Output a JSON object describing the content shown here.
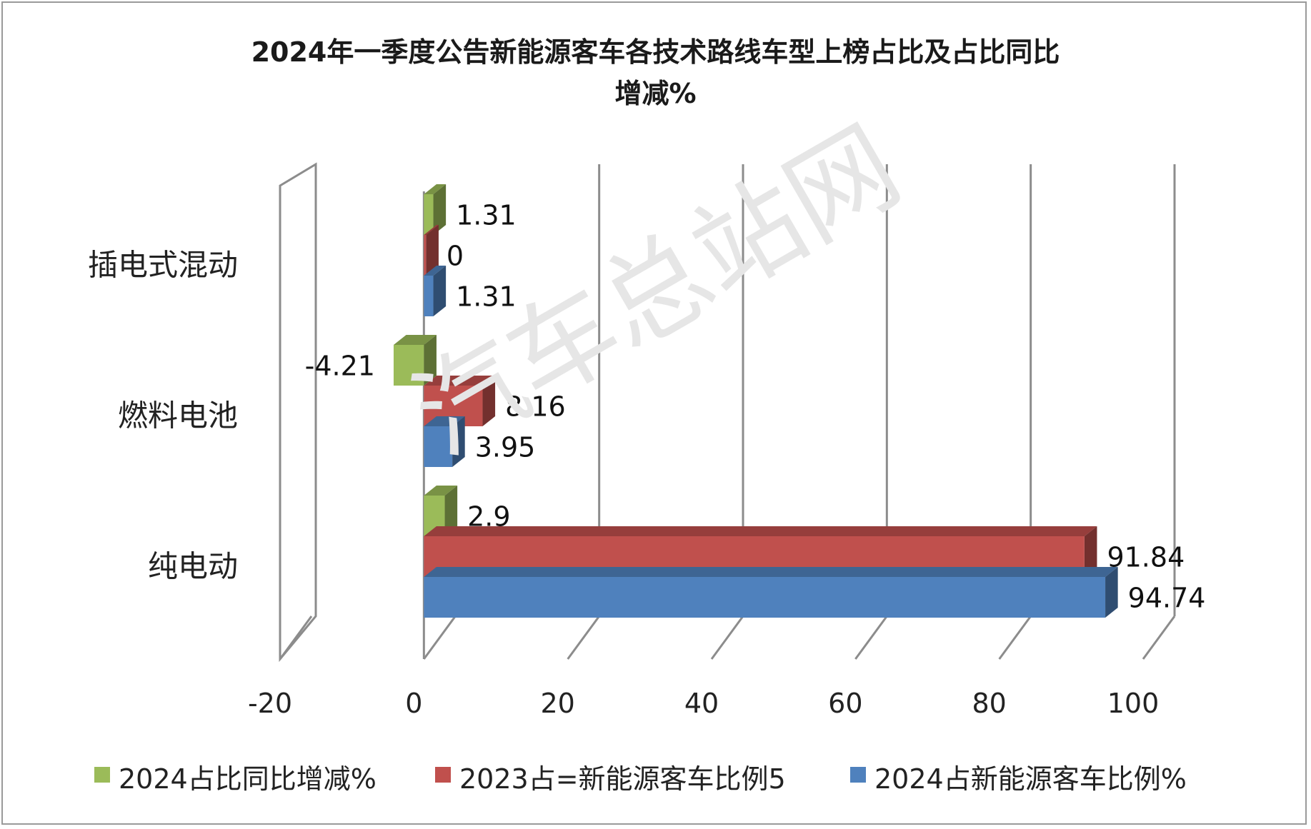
{
  "chart_data": {
    "type": "bar",
    "orientation": "horizontal",
    "title_lines": [
      "2024年一季度公告新能源客车各技术路线车型上榜占比及占比同比",
      "增减%"
    ],
    "categories": [
      "插电式混动",
      "燃料电池",
      "纯电动"
    ],
    "series": [
      {
        "name": "2024占比同比增减%",
        "color": "#9BBB59",
        "values": [
          1.31,
          -4.21,
          2.9
        ]
      },
      {
        "name": "2023占=新能源客车比例5",
        "color": "#C0504D",
        "values": [
          0,
          8.16,
          91.84
        ]
      },
      {
        "name": "2024占新能源客车比例%",
        "color": "#4F81BD",
        "values": [
          1.31,
          3.95,
          94.74
        ]
      }
    ],
    "data_labels": [
      [
        "1.31",
        "0",
        "1.31"
      ],
      [
        "-4.21",
        "8.16",
        "3.95"
      ],
      [
        "2.9",
        "91.84",
        "94.74"
      ]
    ],
    "xlim": [
      -20,
      100
    ],
    "x_ticks": [
      "-20",
      "0",
      "20",
      "40",
      "60",
      "80",
      "100"
    ],
    "grid": true,
    "legend_position": "bottom",
    "style": "3d"
  },
  "watermark": "汽车总站网"
}
